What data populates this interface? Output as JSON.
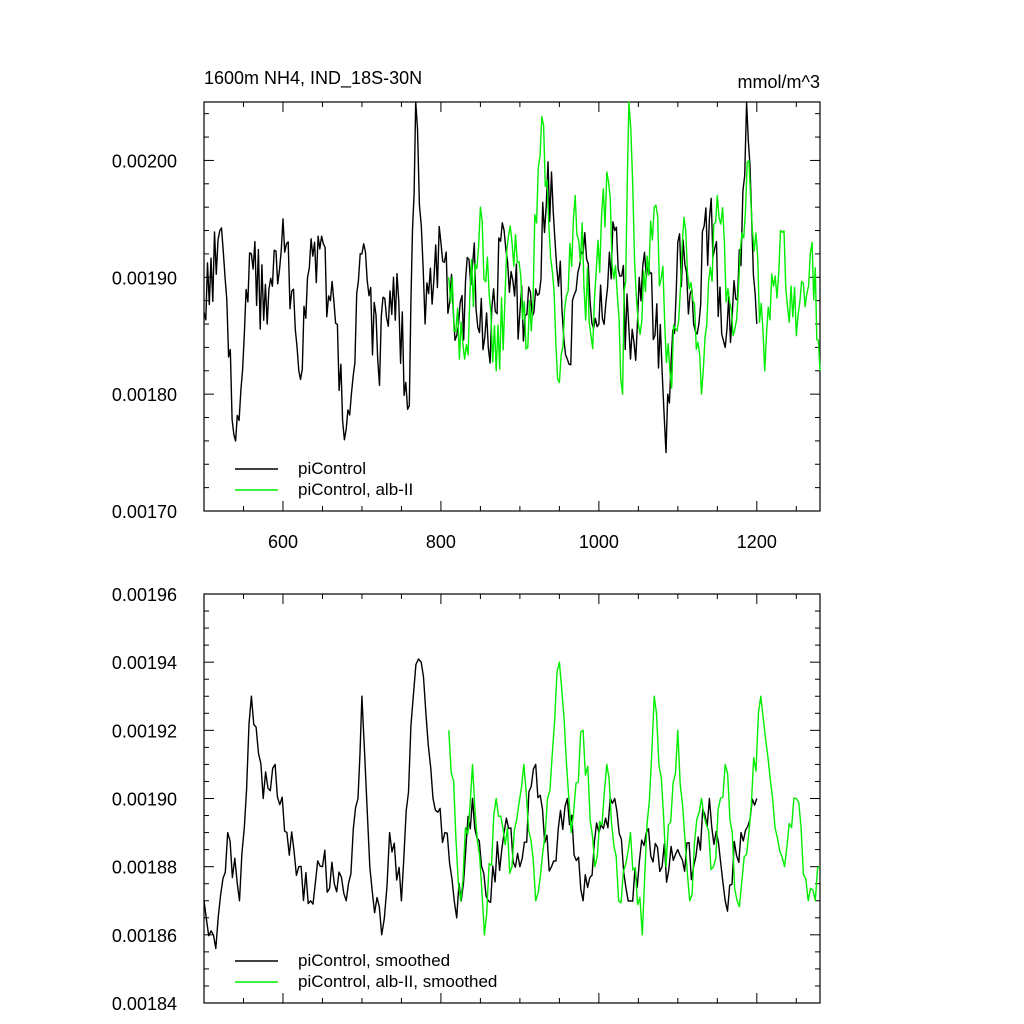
{
  "colors": {
    "piControl": "#000000",
    "albII": "#00ee00",
    "axis": "#000000"
  },
  "chart_data": [
    {
      "type": "line",
      "title": "1600m NH4, IND_18S-30N",
      "units": "mmol/m^3",
      "xlim": [
        500,
        1280
      ],
      "ylim": [
        0.0017,
        0.00205
      ],
      "xticks": [
        600,
        800,
        1000,
        1200
      ],
      "xticklabels": [
        "600",
        "800",
        "1000",
        "1200"
      ],
      "yticks": [
        0.0017,
        0.0018,
        0.0019,
        0.002
      ],
      "yticklabels": [
        "0.00170",
        "0.00180",
        "0.00190",
        "0.00200"
      ],
      "legend_position": "bottom-left",
      "series": [
        {
          "name": "piControl",
          "color": "#000000",
          "x": [
            500,
            520,
            540,
            560,
            580,
            600,
            620,
            640,
            660,
            680,
            700,
            720,
            740,
            760,
            768,
            780,
            800,
            820,
            840,
            860,
            880,
            900,
            920,
            940,
            960,
            980,
            1000,
            1020,
            1040,
            1060,
            1080,
            1085,
            1100,
            1120,
            1140,
            1160,
            1180,
            1187,
            1200
          ],
          "y": [
            0.00187,
            0.00194,
            0.00176,
            0.00192,
            0.00186,
            0.00195,
            0.00182,
            0.00193,
            0.00188,
            0.00177,
            0.00192,
            0.00183,
            0.0019,
            0.00179,
            0.00205,
            0.00186,
            0.00193,
            0.00185,
            0.00191,
            0.00184,
            0.00194,
            0.00187,
            0.00189,
            0.00199,
            0.00183,
            0.00192,
            0.00186,
            0.00194,
            0.00183,
            0.0019,
            0.00182,
            0.00175,
            0.00193,
            0.00186,
            0.00195,
            0.00184,
            0.00191,
            0.00205,
            0.00186
          ]
        },
        {
          "name": "piControl, alb-II",
          "color": "#00ee00",
          "x": [
            810,
            830,
            850,
            870,
            890,
            910,
            930,
            950,
            970,
            990,
            1010,
            1030,
            1038,
            1050,
            1070,
            1090,
            1110,
            1130,
            1150,
            1170,
            1190,
            1210,
            1230,
            1250,
            1270,
            1280
          ],
          "y": [
            0.0019,
            0.00183,
            0.00196,
            0.00182,
            0.00193,
            0.00184,
            0.00203,
            0.00181,
            0.00197,
            0.00185,
            0.00199,
            0.0018,
            0.00205,
            0.00186,
            0.00196,
            0.00182,
            0.00194,
            0.0018,
            0.00197,
            0.00185,
            0.002,
            0.00182,
            0.00194,
            0.00185,
            0.00193,
            0.00182
          ]
        }
      ]
    },
    {
      "type": "line",
      "xlim": [
        500,
        1280
      ],
      "ylim": [
        0.00184,
        0.00196
      ],
      "xticks": [
        600,
        800,
        1000,
        1200
      ],
      "yticks": [
        0.00184,
        0.00186,
        0.00188,
        0.0019,
        0.00192,
        0.00194,
        0.00196
      ],
      "yticklabels": [
        "0.00184",
        "0.00186",
        "0.00188",
        "0.00190",
        "0.00192",
        "0.00194",
        "0.00196"
      ],
      "legend_position": "bottom-left",
      "series": [
        {
          "name": "piControl, smoothed",
          "color": "#000000",
          "x": [
            500,
            515,
            530,
            545,
            560,
            575,
            590,
            605,
            620,
            635,
            650,
            665,
            680,
            695,
            700,
            710,
            725,
            735,
            750,
            765,
            775,
            790,
            805,
            820,
            840,
            860,
            880,
            900,
            920,
            940,
            960,
            980,
            1000,
            1020,
            1040,
            1060,
            1080,
            1100,
            1120,
            1140,
            1160,
            1180,
            1200
          ],
          "y": [
            0.00187,
            0.001856,
            0.00189,
            0.00187,
            0.00193,
            0.0019,
            0.00191,
            0.00189,
            0.00188,
            0.00187,
            0.00188,
            0.001875,
            0.00187,
            0.0019,
            0.00193,
            0.00188,
            0.00186,
            0.00189,
            0.00187,
            0.00193,
            0.00194,
            0.0019,
            0.00189,
            0.001865,
            0.0019,
            0.00187,
            0.00189,
            0.00188,
            0.00191,
            0.00188,
            0.0019,
            0.00187,
            0.00189,
            0.0019,
            0.00187,
            0.00189,
            0.00188,
            0.001885,
            0.00188,
            0.0019,
            0.00187,
            0.00189,
            0.0019
          ]
        },
        {
          "name": "piControl, alb-II, smoothed",
          "color": "#00ee00",
          "x": [
            810,
            825,
            840,
            855,
            870,
            890,
            905,
            920,
            935,
            950,
            965,
            980,
            995,
            1010,
            1025,
            1040,
            1055,
            1070,
            1085,
            1100,
            1115,
            1130,
            1145,
            1160,
            1175,
            1190,
            1205,
            1220,
            1235,
            1250,
            1265,
            1280
          ],
          "y": [
            0.00192,
            0.00187,
            0.00191,
            0.00186,
            0.0019,
            0.00188,
            0.00191,
            0.00187,
            0.0019,
            0.00194,
            0.00189,
            0.00192,
            0.00188,
            0.00191,
            0.00187,
            0.00189,
            0.00186,
            0.00193,
            0.00188,
            0.00192,
            0.00187,
            0.0019,
            0.00188,
            0.00191,
            0.00187,
            0.00189,
            0.00193,
            0.0019,
            0.00188,
            0.0019,
            0.00187,
            0.00188
          ]
        }
      ]
    }
  ]
}
